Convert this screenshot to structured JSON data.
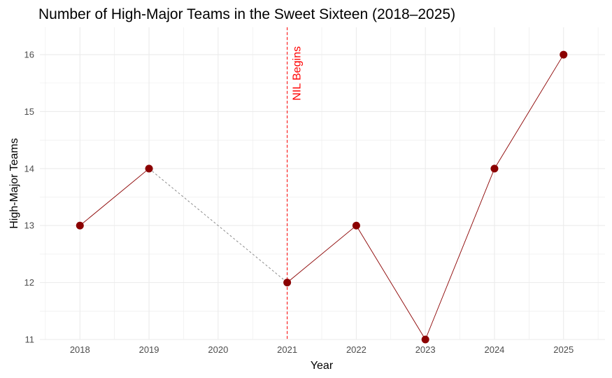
{
  "chart_data": {
    "type": "line",
    "title": "Number of High-Major Teams in the Sweet Sixteen (2018–2025)",
    "xlabel": "Year",
    "ylabel": "High-Major Teams",
    "x_ticks": [
      "2018",
      "2019",
      "2020",
      "2021",
      "2022",
      "2023",
      "2024",
      "2025"
    ],
    "y_ticks": [
      "11",
      "12",
      "13",
      "14",
      "15",
      "16"
    ],
    "xlim": [
      2017.42,
      2025.6
    ],
    "ylim": [
      11,
      16.48
    ],
    "grid": true,
    "points": [
      {
        "x": 2018,
        "y": 13
      },
      {
        "x": 2019,
        "y": 14
      },
      {
        "x": 2021,
        "y": 12
      },
      {
        "x": 2022,
        "y": 13
      },
      {
        "x": 2023,
        "y": 11
      },
      {
        "x": 2024,
        "y": 14
      },
      {
        "x": 2025,
        "y": 16
      }
    ],
    "segments": [
      {
        "from": 2018,
        "to": 2019,
        "style": "solid"
      },
      {
        "from": 2019,
        "to": 2021,
        "style": "dashed"
      },
      {
        "from": 2021,
        "to": 2022,
        "style": "solid"
      },
      {
        "from": 2022,
        "to": 2023,
        "style": "solid"
      },
      {
        "from": 2023,
        "to": 2024,
        "style": "solid"
      },
      {
        "from": 2024,
        "to": 2025,
        "style": "solid"
      }
    ],
    "annotation": {
      "x": 2021,
      "label": "NIL Begins",
      "color": "#ff0000"
    },
    "colors": {
      "line": "#8b0000",
      "point": "#8b0000",
      "dashed_line": "#808080",
      "grid": "#ebebeb"
    }
  }
}
